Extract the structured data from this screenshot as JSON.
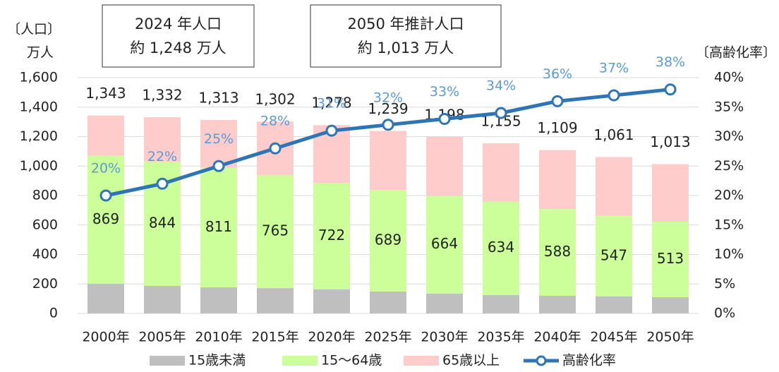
{
  "chart_data": {
    "type": "bar_line",
    "y_label": "〔人口〕",
    "y_unit": "万人",
    "y2_label": "〔高齢化率〕",
    "annotations": [
      {
        "lines": [
          "2024 年人口",
          "約 1,248 万人"
        ]
      },
      {
        "lines": [
          "2050 年推計人口",
          "約 1,013 万人"
        ]
      }
    ],
    "categories": [
      "2000年",
      "2005年",
      "2010年",
      "2015年",
      "2020年",
      "2025年",
      "2030年",
      "2035年",
      "2040年",
      "2045年",
      "2050年"
    ],
    "totals": [
      "1,343",
      "1,332",
      "1,313",
      "1,302",
      "1,278",
      "1,239",
      "1,198",
      "1,155",
      "1,109",
      "1,061",
      "1,013"
    ],
    "series": [
      {
        "name": "15歳未満",
        "color": "#bfbfbf",
        "values": [
          201,
          187,
          177,
          172,
          163,
          149,
          134,
          125,
          120,
          115,
          110
        ]
      },
      {
        "name": "15〜64歳",
        "color": "#ccff99",
        "values": [
          869,
          844,
          811,
          765,
          722,
          689,
          664,
          634,
          588,
          547,
          513
        ],
        "labels": true
      },
      {
        "name": "65歳以上",
        "color": "#ffcccc",
        "values": [
          273,
          301,
          325,
          365,
          393,
          401,
          400,
          396,
          401,
          399,
          390
        ]
      },
      {
        "name": "高齢化率",
        "color": "#2e75b6",
        "axis": "y2",
        "values": [
          20,
          22,
          25,
          28,
          31,
          32,
          33,
          34,
          36,
          37,
          38
        ],
        "value_labels": [
          "20%",
          "22%",
          "25%",
          "28%",
          "31%",
          "32%",
          "33%",
          "34%",
          "36%",
          "37%",
          "38%"
        ],
        "label_color": "#5b9bd5"
      }
    ],
    "ylim": [
      0,
      1600
    ],
    "yticks": [
      0,
      200,
      400,
      600,
      800,
      {
        "value": 1000,
        "label": "1,000"
      },
      {
        "value": 1200,
        "label": "1,200"
      },
      {
        "value": 1400,
        "label": "1,400"
      },
      {
        "value": 1600,
        "label": "1,600"
      }
    ],
    "y2lim": [
      0,
      40
    ],
    "y2ticks": [
      {
        "value": 0,
        "label": "0%"
      },
      {
        "value": 5,
        "label": "5%"
      },
      {
        "value": 10,
        "label": "10%"
      },
      {
        "value": 15,
        "label": "15%"
      },
      {
        "value": 20,
        "label": "20%"
      },
      {
        "value": 25,
        "label": "25%"
      },
      {
        "value": 30,
        "label": "30%"
      },
      {
        "value": 35,
        "label": "35%"
      },
      {
        "value": 40,
        "label": "40%"
      }
    ],
    "grid": true
  }
}
